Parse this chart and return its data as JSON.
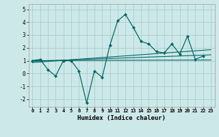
{
  "title": "",
  "xlabel": "Humidex (Indice chaleur)",
  "ylabel": "",
  "bg_color": "#cde8e8",
  "line_color": "#006666",
  "grid_color": "#aacccc",
  "xlim": [
    -0.5,
    23.5
  ],
  "ylim": [
    -2.6,
    5.4
  ],
  "xticks": [
    0,
    1,
    2,
    3,
    4,
    5,
    6,
    7,
    8,
    9,
    10,
    11,
    12,
    13,
    14,
    15,
    16,
    17,
    18,
    19,
    20,
    21,
    22,
    23
  ],
  "yticks": [
    -2,
    -1,
    0,
    1,
    2,
    3,
    4,
    5
  ],
  "main_line_x": [
    0,
    1,
    2,
    3,
    4,
    5,
    6,
    7,
    8,
    9,
    10,
    11,
    12,
    13,
    14,
    15,
    16,
    17,
    18,
    19,
    20,
    21,
    22
  ],
  "main_line_y": [
    1.0,
    1.1,
    0.3,
    -0.2,
    1.0,
    1.0,
    0.2,
    -2.3,
    0.2,
    -0.3,
    2.2,
    4.1,
    4.6,
    3.6,
    2.5,
    2.3,
    1.7,
    1.6,
    2.3,
    1.5,
    2.9,
    1.1,
    1.35
  ],
  "trend1_x": [
    0,
    23
  ],
  "trend1_y": [
    0.85,
    1.85
  ],
  "trend2_x": [
    0,
    23
  ],
  "trend2_y": [
    0.95,
    1.45
  ],
  "trend3_x": [
    0,
    23
  ],
  "trend3_y": [
    1.0,
    1.05
  ]
}
